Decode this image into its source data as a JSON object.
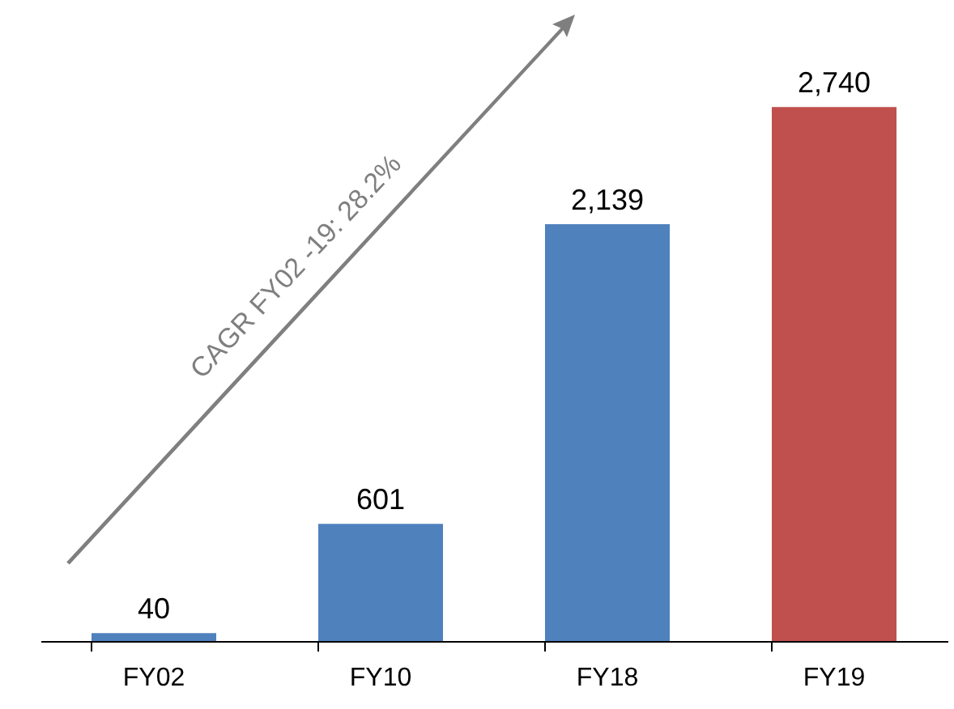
{
  "chart_data": {
    "type": "bar",
    "categories": [
      "FY02",
      "FY10",
      "FY18",
      "FY19"
    ],
    "values": [
      40,
      601,
      2139,
      2740
    ],
    "colors": [
      "#4f81bd",
      "#4f81bd",
      "#4f81bd",
      "#c0504d"
    ],
    "value_labels": [
      "40",
      "601",
      "2,139",
      "2,740"
    ],
    "annotations": [
      "CAGR FY02 -19: 28.2%"
    ]
  }
}
